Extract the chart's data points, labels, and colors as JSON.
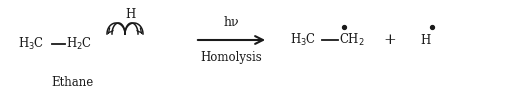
{
  "figsize": [
    5.05,
    0.92
  ],
  "dpi": 100,
  "bg_color": "#ffffff",
  "text_color": "#1a1a1a",
  "font_family": "DejaVu Serif",
  "ethane_label": "Ethane",
  "hv_text": "hν",
  "homolysis_text": "Homolysis"
}
